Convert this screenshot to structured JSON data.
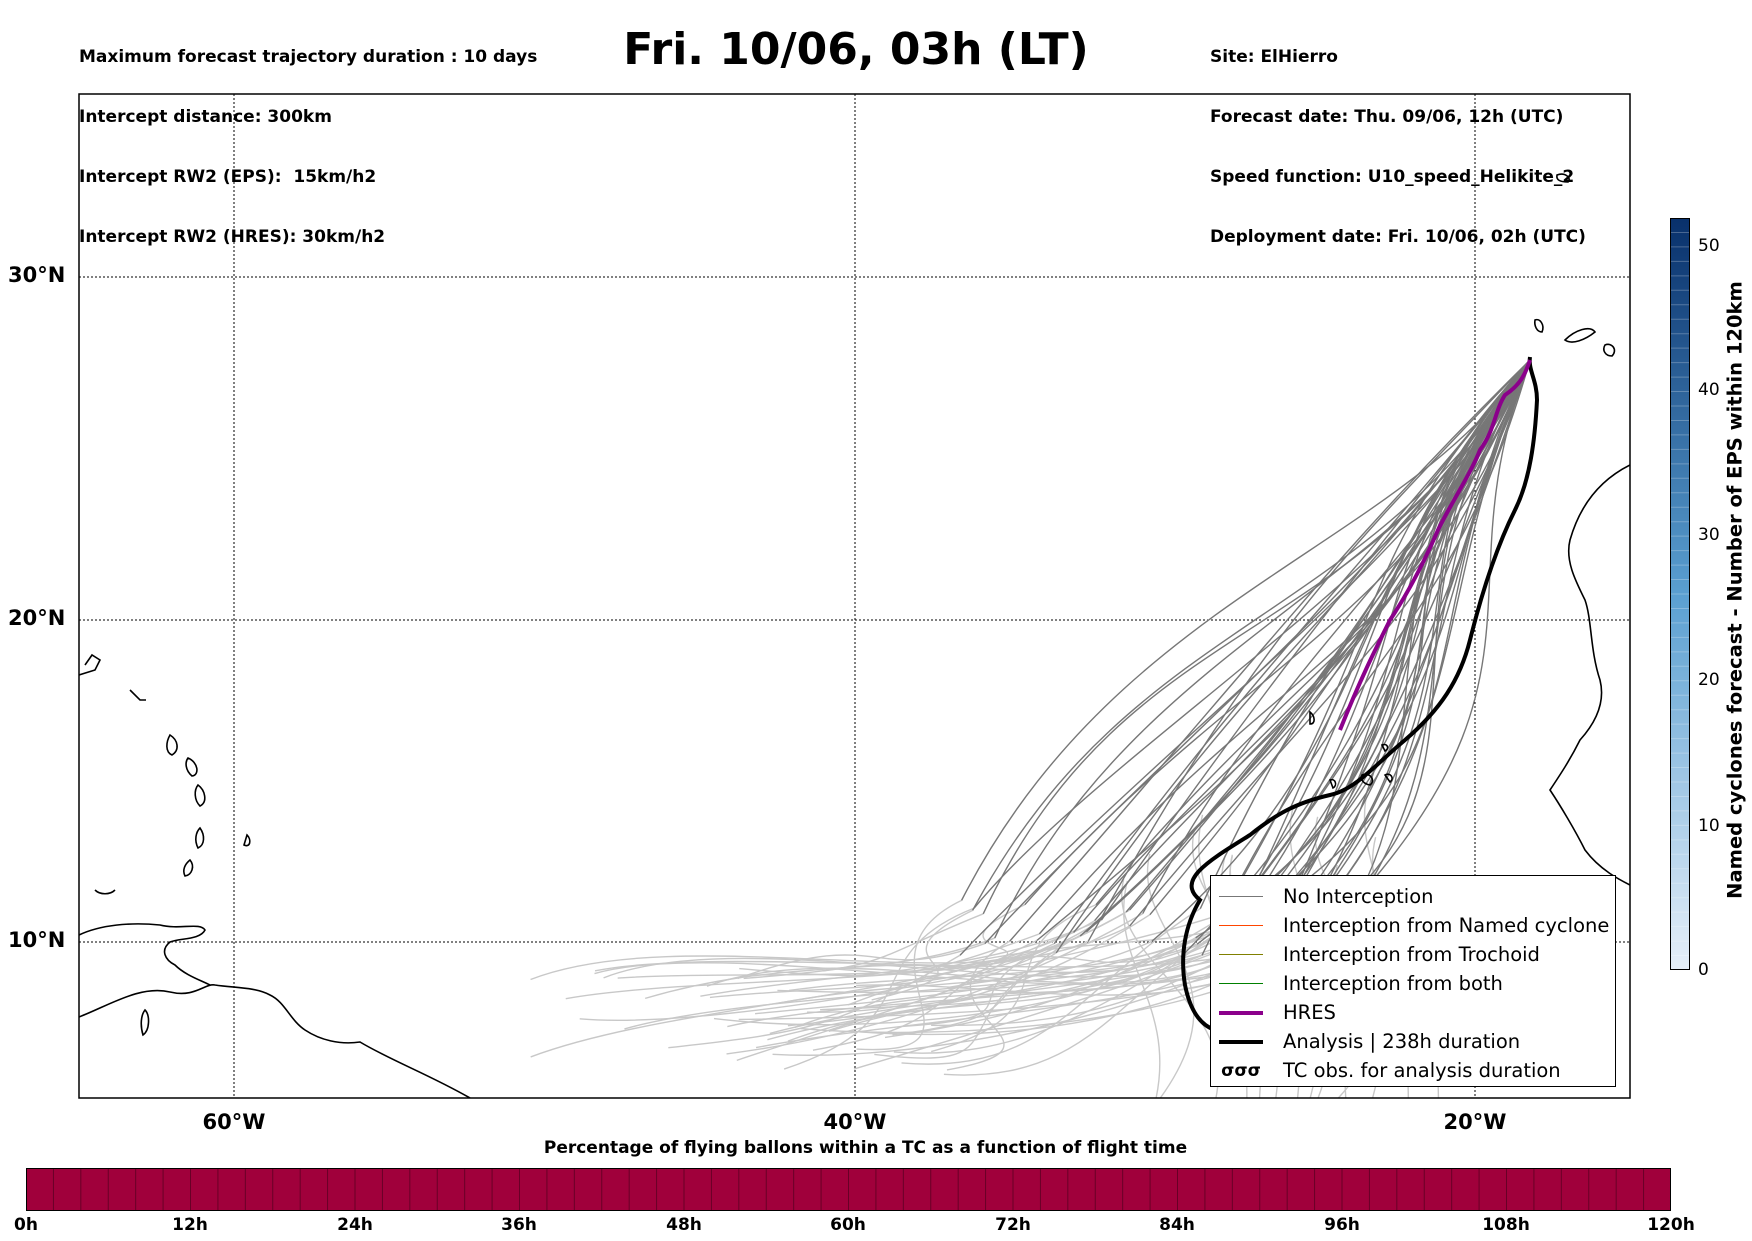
{
  "header": {
    "left": [
      "Maximum forecast trajectory duration : 10 days",
      "Intercept distance: 300km",
      "Intercept RW2 (EPS):  15km/h2",
      "Intercept RW2 (HRES): 30km/h2"
    ],
    "title": "Fri. 10/06, 03h (LT)",
    "right": [
      "Site: ElHierro",
      "Forecast date: Thu. 09/06, 12h (UTC)",
      "Speed function: U10_speed_Helikite_2",
      "Deployment date: Fri. 10/06, 02h (UTC)"
    ]
  },
  "map": {
    "lon_labels": [
      "60°W",
      "40°W",
      "20°W"
    ],
    "lat_labels": [
      "30°N",
      "20°N",
      "10°N"
    ],
    "colors": {
      "no_interception": "#777777",
      "late_trajectory": "#c8c8c8",
      "hres": "#8b008b",
      "analysis": "#000000",
      "named_cyclone": "#ff4500",
      "trochoid": "#808000",
      "both": "#008000"
    }
  },
  "legend": {
    "items": [
      {
        "label": "No Interception",
        "color": "#777777",
        "style": "thin"
      },
      {
        "label": "Interception from Named cyclone",
        "color": "#ff4500",
        "style": "thin"
      },
      {
        "label": "Interception from Trochoid",
        "color": "#808000",
        "style": "thin"
      },
      {
        "label": "Interception from both",
        "color": "#008000",
        "style": "thin"
      },
      {
        "label": "HRES",
        "color": "#8b008b",
        "style": "thick"
      },
      {
        "label": "Analysis | 238h duration",
        "color": "#000000",
        "style": "thick"
      },
      {
        "label": "TC obs. for analysis duration",
        "color": "#000000",
        "style": "symbol",
        "symbol": "σσσ"
      }
    ]
  },
  "colorbar_vertical": {
    "label": "Named cyclones forecast - Number of EPS within 120km",
    "ticks": [
      "0",
      "10",
      "20",
      "30",
      "40",
      "50"
    ],
    "color_low": "#e6eff9",
    "color_high": "#08306b"
  },
  "colorbar_horizontal": {
    "title": "Percentage of flying ballons within a TC as a function of flight time",
    "ticks": [
      "0h",
      "12h",
      "24h",
      "36h",
      "48h",
      "60h",
      "72h",
      "84h",
      "96h",
      "108h",
      "120h"
    ],
    "fill_color": "#a0003b"
  }
}
